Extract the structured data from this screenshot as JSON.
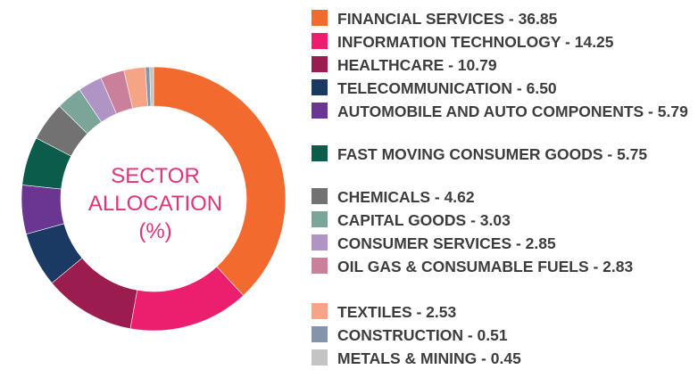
{
  "chart_data": {
    "type": "pie",
    "center_label": [
      "SECTOR",
      "ALLOCATION",
      "(%)"
    ],
    "legend_placement": "right",
    "slices": [
      {
        "label": "FINANCIAL SERVICES - 36.85",
        "name": "FINANCIAL SERVICES",
        "value": 36.85,
        "color": "#f26a2e"
      },
      {
        "label": "INFORMATION TECHNOLOGY - 14.25",
        "name": "INFORMATION TECHNOLOGY",
        "value": 14.25,
        "color": "#ec1f6e"
      },
      {
        "label": "HEALTHCARE - 10.79",
        "name": "HEALTHCARE",
        "value": 10.79,
        "color": "#9b1c4e"
      },
      {
        "label": "TELECOMMUNICATION - 6.50",
        "name": "TELECOMMUNICATION",
        "value": 6.5,
        "color": "#1b3a63"
      },
      {
        "label": "AUTOMOBILE AND AUTO COMPONENTS - 5.79",
        "name": "AUTOMOBILE AND AUTO COMPONENTS",
        "value": 5.79,
        "color": "#6b3592"
      },
      {
        "label": "FAST MOVING CONSUMER GOODS - 5.75",
        "name": "FAST MOVING CONSUMER GOODS",
        "value": 5.75,
        "color": "#0b5c4b"
      },
      {
        "label": "CHEMICALS - 4.62",
        "name": "CHEMICALS",
        "value": 4.62,
        "color": "#727272"
      },
      {
        "label": "CAPITAL GOODS - 3.03",
        "name": "CAPITAL GOODS",
        "value": 3.03,
        "color": "#7ba598"
      },
      {
        "label": "CONSUMER SERVICES - 2.85",
        "name": "CONSUMER SERVICES",
        "value": 2.85,
        "color": "#b094c6"
      },
      {
        "label": "OIL GAS & CONSUMABLE FUELS - 2.83",
        "name": "OIL GAS & CONSUMABLE FUELS",
        "value": 2.83,
        "color": "#ca7f9a"
      },
      {
        "label": "TEXTILES - 2.53",
        "name": "TEXTILES",
        "value": 2.53,
        "color": "#f6a486"
      },
      {
        "label": "CONSTRUCTION - 0.51",
        "name": "CONSTRUCTION",
        "value": 0.51,
        "color": "#8593ab"
      },
      {
        "label": "METALS & MINING - 0.45",
        "name": "METALS & MINING",
        "value": 0.45,
        "color": "#c4c4c4"
      }
    ]
  }
}
